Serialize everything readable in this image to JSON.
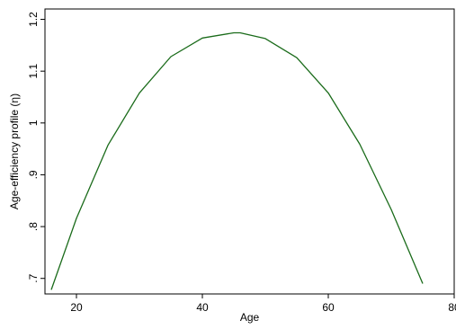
{
  "chart_data": {
    "type": "line",
    "title": "",
    "xlabel": "Age",
    "ylabel": "Age-efficiency profile (η)",
    "xlim": [
      15,
      80
    ],
    "ylim": [
      0.67,
      1.22
    ],
    "xticks": [
      20,
      40,
      60,
      80
    ],
    "yticks": [
      0.7,
      0.8,
      0.9,
      1.0,
      1.1,
      1.2
    ],
    "xtick_labels": [
      "20",
      "40",
      "60",
      "80"
    ],
    "ytick_labels": [
      ".7",
      ".8",
      ".9",
      "1",
      "1.1",
      "1.2"
    ],
    "grid": false,
    "legend": "none",
    "series": [
      {
        "color": "#1a6b1a",
        "x": [
          16,
          20,
          25,
          30,
          35,
          40,
          45,
          46,
          50,
          55,
          60,
          65,
          70,
          75
        ],
        "y": [
          0.678,
          0.816,
          0.957,
          1.058,
          1.128,
          1.164,
          1.174,
          1.174,
          1.163,
          1.126,
          1.058,
          0.959,
          0.833,
          0.69
        ]
      }
    ]
  }
}
